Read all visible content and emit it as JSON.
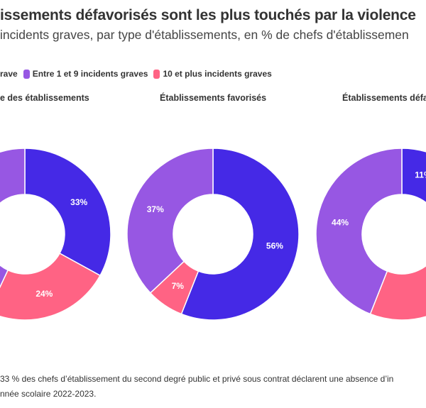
{
  "title": "issements défavorisés sont les plus touchés par la violence",
  "subtitle": "incidents graves, par type d'établissements, en % de chefs d'établissemen",
  "legend": [
    {
      "label": "rave",
      "color": "#4529e6"
    },
    {
      "label": "Entre 1 et 9 incidents graves",
      "color": "#9757e3"
    },
    {
      "label": "10 et plus incidents graves",
      "color": "#ff6384"
    }
  ],
  "chart_data": [
    {
      "type": "pie",
      "title": "e des établissements",
      "slices": [
        {
          "series": 0,
          "value": 33,
          "label": "33%"
        },
        {
          "series": 2,
          "value": 24,
          "label": "24%"
        },
        {
          "series": 1,
          "value": 43,
          "label": ""
        }
      ]
    },
    {
      "type": "pie",
      "title": "Établissements favorisés",
      "slices": [
        {
          "series": 0,
          "value": 56,
          "label": "56%"
        },
        {
          "series": 2,
          "value": 7,
          "label": "7%"
        },
        {
          "series": 1,
          "value": 37,
          "label": "37%"
        }
      ]
    },
    {
      "type": "pie",
      "title": "Établissements défa",
      "slices": [
        {
          "series": 0,
          "value": 11,
          "label": "11%"
        },
        {
          "series": 2,
          "value": 45,
          "label": ""
        },
        {
          "series": 1,
          "value": 44,
          "label": "44%"
        }
      ]
    }
  ],
  "footnote": {
    "line1": "33 % des chefs d’établissement du second degré public et privé sous contrat déclarent une absence d’in",
    "line2": "nnée scolaire 2022-2023."
  }
}
